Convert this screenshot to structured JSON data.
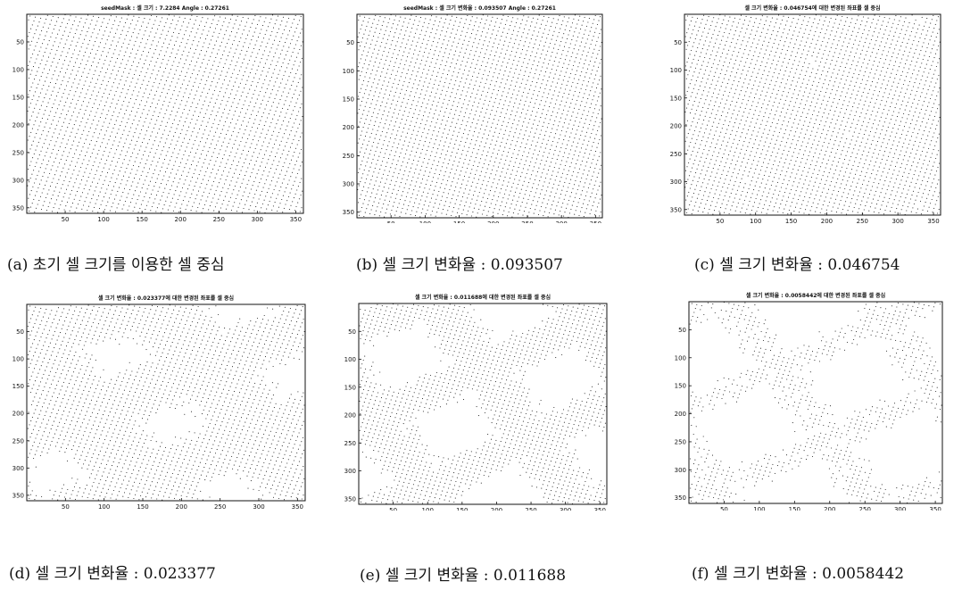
{
  "figure": {
    "captions": [
      "(a) 초기 셀 크기를 이용한 셀 중심",
      "(b) 셀 크기 변화율 : 0.093507",
      "(c) 셀 크기 변화율 : 0.046754",
      "(d) 셀 크기 변화율 : 0.023377",
      "(e) 셀 크기 변화율 : 0.011688",
      "(f) 셀 크기 변화율 : 0.0058442"
    ]
  },
  "chart_data": [
    {
      "type": "scatter",
      "title": "seedMask : 셀 크기 : 7.2284 Angle : 0.27261",
      "xlim": [
        0,
        360
      ],
      "ylim": [
        0,
        360
      ],
      "y_reversed": true,
      "xticks": [
        50,
        100,
        150,
        200,
        250,
        300,
        350
      ],
      "yticks": [
        50,
        100,
        150,
        200,
        250,
        300,
        350
      ],
      "grid": false,
      "cell_size": 7.2284,
      "angle": 0.27261,
      "keep_fraction": 1.0
    },
    {
      "type": "scatter",
      "title": "seedMask : 셀 크기 변화율 : 0.093507 Angle : 0.27261",
      "xlim": [
        0,
        360
      ],
      "ylim": [
        0,
        360
      ],
      "y_reversed": true,
      "xticks": [
        50,
        100,
        150,
        200,
        250,
        300,
        350
      ],
      "yticks": [
        50,
        100,
        150,
        200,
        250,
        300,
        350
      ],
      "grid": false,
      "cell_size": 7.2284,
      "angle": 0.27261,
      "keep_fraction": 1.0
    },
    {
      "type": "scatter",
      "title": "셀 크기 변화율 : 0.046754에 대한 변경된 좌표를 셀 중심",
      "xlim": [
        0,
        360
      ],
      "ylim": [
        0,
        360
      ],
      "y_reversed": true,
      "xticks": [
        50,
        100,
        150,
        200,
        250,
        300,
        350
      ],
      "yticks": [
        50,
        100,
        150,
        200,
        250,
        300,
        350
      ],
      "grid": false,
      "cell_size": 7.2284,
      "angle": 0.27261,
      "keep_fraction": 0.95
    },
    {
      "type": "scatter",
      "title": "셀 크기 변화율 : 0.023377에 대한 변경된 좌표를 셀 중심",
      "xlim": [
        0,
        360
      ],
      "ylim": [
        0,
        360
      ],
      "y_reversed": true,
      "xticks": [
        50,
        100,
        150,
        200,
        250,
        300,
        350
      ],
      "yticks": [
        50,
        100,
        150,
        200,
        250,
        300,
        350
      ],
      "grid": false,
      "cell_size": 7.2284,
      "angle": 0.27261,
      "keep_fraction": 0.62
    },
    {
      "type": "scatter",
      "title": "셀 크기 변화율 : 0.011688에 대한 변경된 좌표를 셀 중심",
      "xlim": [
        0,
        360
      ],
      "ylim": [
        0,
        360
      ],
      "y_reversed": true,
      "xticks": [
        50,
        100,
        150,
        200,
        250,
        300,
        350
      ],
      "yticks": [
        50,
        100,
        150,
        200,
        250,
        300,
        350
      ],
      "grid": false,
      "cell_size": 7.2284,
      "angle": 0.27261,
      "keep_fraction": 0.42
    },
    {
      "type": "scatter",
      "title": "셀 크기 변화율 : 0.0058442에 대한 변경된 좌표를 셀 중심",
      "xlim": [
        0,
        360
      ],
      "ylim": [
        0,
        360
      ],
      "y_reversed": true,
      "xticks": [
        50,
        100,
        150,
        200,
        250,
        300,
        350
      ],
      "yticks": [
        50,
        100,
        150,
        200,
        250,
        300,
        350
      ],
      "grid": false,
      "cell_size": 7.2284,
      "angle": 0.27261,
      "keep_fraction": 0.24
    }
  ]
}
